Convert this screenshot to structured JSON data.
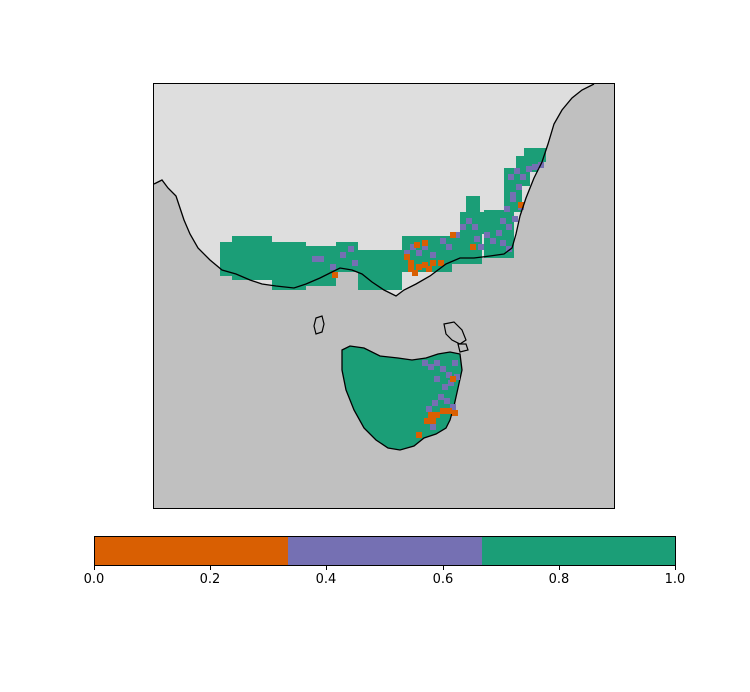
{
  "map": {
    "land_color": "#c0c0c0",
    "ocean_color": "#dedede",
    "coast_color": "#000000",
    "category_colors": [
      "#d95f02",
      "#7570b3",
      "#1b9e77"
    ],
    "regions": [
      "mainland-southeast-australia",
      "tasmania"
    ]
  },
  "colorbar": {
    "colors": [
      "#d95f02",
      "#7570b3",
      "#1b9e77"
    ],
    "bounds": [
      0.0,
      0.3333,
      0.6667,
      1.0
    ],
    "ticks": [
      "0.0",
      "0.2",
      "0.4",
      "0.6",
      "0.8",
      "1.0"
    ]
  }
}
